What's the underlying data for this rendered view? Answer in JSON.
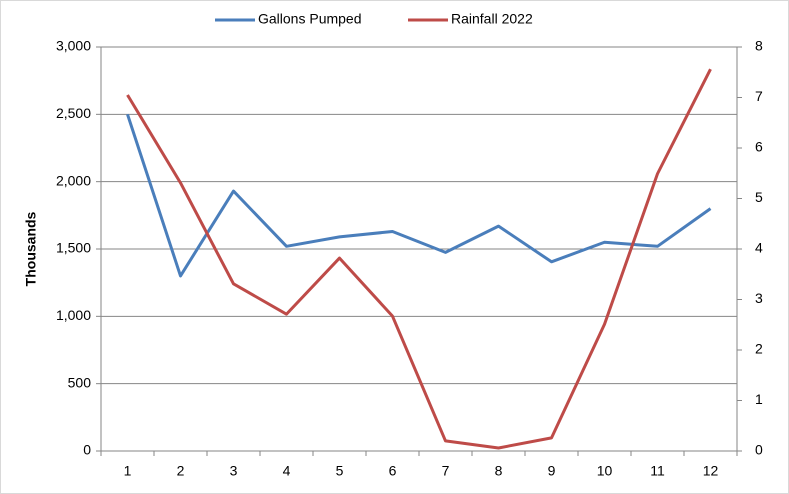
{
  "chart_data": {
    "type": "line",
    "y_axis_label": "Thousands",
    "categories": [
      "1",
      "2",
      "3",
      "4",
      "5",
      "6",
      "7",
      "8",
      "9",
      "10",
      "11",
      "12"
    ],
    "series": [
      {
        "name": "Gallons Pumped",
        "color": "#4a7ebb",
        "values": [
          2500,
          1300,
          1930,
          1520,
          1590,
          1630,
          1475,
          1670,
          1405,
          1550,
          1520,
          1800
        ]
      },
      {
        "name": "Rainfall 2022",
        "color": "#be4b48",
        "axis": "y2",
        "values": [
          7.05,
          5.31,
          3.31,
          2.71,
          3.82,
          2.67,
          0.2,
          0.06,
          0.26,
          2.51,
          5.49,
          7.56
        ]
      }
    ],
    "ylim": [
      0,
      3000
    ],
    "yticks": [
      0,
      500,
      {
        "value": 1000,
        "label": "1,000"
      },
      {
        "value": 1500,
        "label": "1,500"
      },
      {
        "value": 2000,
        "label": "2,000"
      },
      {
        "value": 2500,
        "label": "2,500"
      },
      {
        "value": 3000,
        "label": "3,000"
      }
    ],
    "y2lim": [
      0,
      8
    ],
    "y2ticks": [
      0,
      1,
      2,
      3,
      4,
      5,
      6,
      7,
      8
    ],
    "grid": true,
    "legend": "top"
  }
}
